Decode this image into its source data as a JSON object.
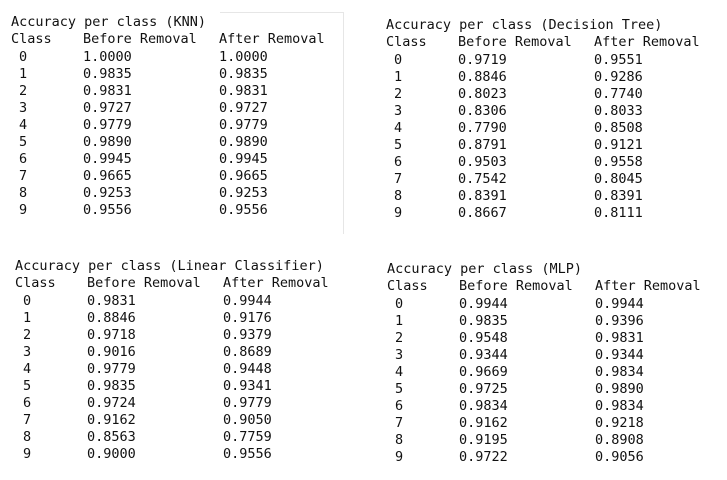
{
  "panels": {
    "knn": {
      "title": "Accuracy per class (KNN)",
      "headers": [
        "Class",
        "Before Removal",
        "After Removal"
      ],
      "rows": [
        [
          "0",
          "1.0000",
          "1.0000"
        ],
        [
          "1",
          "0.9835",
          "0.9835"
        ],
        [
          "2",
          "0.9831",
          "0.9831"
        ],
        [
          "3",
          "0.9727",
          "0.9727"
        ],
        [
          "4",
          "0.9779",
          "0.9779"
        ],
        [
          "5",
          "0.9890",
          "0.9890"
        ],
        [
          "6",
          "0.9945",
          "0.9945"
        ],
        [
          "7",
          "0.9665",
          "0.9665"
        ],
        [
          "8",
          "0.9253",
          "0.9253"
        ],
        [
          "9",
          "0.9556",
          "0.9556"
        ]
      ]
    },
    "dt": {
      "title": "Accuracy per class (Decision Tree)",
      "headers": [
        "Class",
        "Before Removal",
        "After Removal"
      ],
      "rows": [
        [
          "0",
          "0.9719",
          "0.9551"
        ],
        [
          "1",
          "0.8846",
          "0.9286"
        ],
        [
          "2",
          "0.8023",
          "0.7740"
        ],
        [
          "3",
          "0.8306",
          "0.8033"
        ],
        [
          "4",
          "0.7790",
          "0.8508"
        ],
        [
          "5",
          "0.8791",
          "0.9121"
        ],
        [
          "6",
          "0.9503",
          "0.9558"
        ],
        [
          "7",
          "0.7542",
          "0.8045"
        ],
        [
          "8",
          "0.8391",
          "0.8391"
        ],
        [
          "9",
          "0.8667",
          "0.8111"
        ]
      ]
    },
    "lin": {
      "title": "Accuracy per class (Linear Classifier)",
      "headers": [
        "Class",
        "Before Removal",
        "After Removal"
      ],
      "rows": [
        [
          "0",
          "0.9831",
          "0.9944"
        ],
        [
          "1",
          "0.8846",
          "0.9176"
        ],
        [
          "2",
          "0.9718",
          "0.9379"
        ],
        [
          "3",
          "0.9016",
          "0.8689"
        ],
        [
          "4",
          "0.9779",
          "0.9448"
        ],
        [
          "5",
          "0.9835",
          "0.9341"
        ],
        [
          "6",
          "0.9724",
          "0.9779"
        ],
        [
          "7",
          "0.9162",
          "0.9050"
        ],
        [
          "8",
          "0.8563",
          "0.7759"
        ],
        [
          "9",
          "0.9000",
          "0.9556"
        ]
      ]
    },
    "mlp": {
      "title": "Accuracy per class (MLP)",
      "headers": [
        "Class",
        "Before Removal",
        "After Removal"
      ],
      "rows": [
        [
          "0",
          "0.9944",
          "0.9944"
        ],
        [
          "1",
          "0.9835",
          "0.9396"
        ],
        [
          "2",
          "0.9548",
          "0.9831"
        ],
        [
          "3",
          "0.9344",
          "0.9344"
        ],
        [
          "4",
          "0.9669",
          "0.9834"
        ],
        [
          "5",
          "0.9725",
          "0.9890"
        ],
        [
          "6",
          "0.9834",
          "0.9834"
        ],
        [
          "7",
          "0.9162",
          "0.9218"
        ],
        [
          "8",
          "0.9195",
          "0.8908"
        ],
        [
          "9",
          "0.9722",
          "0.9056"
        ]
      ]
    }
  }
}
